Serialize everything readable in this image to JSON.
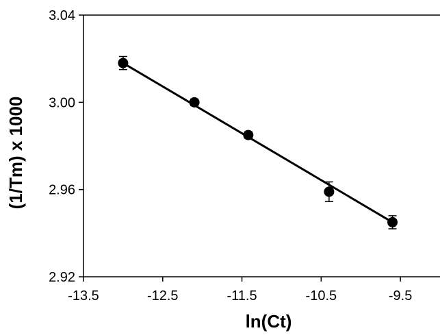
{
  "chart_data": {
    "type": "scatter",
    "title": "",
    "xlabel": "ln(Ct)",
    "ylabel": "(1/Tm) x 1000",
    "xlim": [
      -13.5,
      -9.0
    ],
    "ylim": [
      2.92,
      3.04
    ],
    "x_ticks": [
      -13.5,
      -12.5,
      -11.5,
      -10.5,
      -9.5
    ],
    "x_tick_labels": [
      "-13.5",
      "-12.5",
      "-11.5",
      "-10.5",
      "-9.5"
    ],
    "y_ticks": [
      2.92,
      2.96,
      3.0,
      3.04
    ],
    "y_tick_labels": [
      "2.92",
      "2.96",
      "3.00",
      "3.04"
    ],
    "grid": false,
    "legend": "none",
    "series": [
      {
        "marker": "filled-circle",
        "color": "#000000",
        "x": [
          -13.0,
          -12.1,
          -11.42,
          -10.4,
          -9.6
        ],
        "y": [
          3.018,
          3.0,
          2.985,
          2.959,
          2.945
        ],
        "error": [
          0.003,
          0.0015,
          0.0015,
          0.0045,
          0.003
        ]
      }
    ],
    "fit_line": {
      "x": [
        -13.0,
        -9.6
      ],
      "y": [
        3.018,
        2.945
      ],
      "color": "#000000"
    }
  }
}
